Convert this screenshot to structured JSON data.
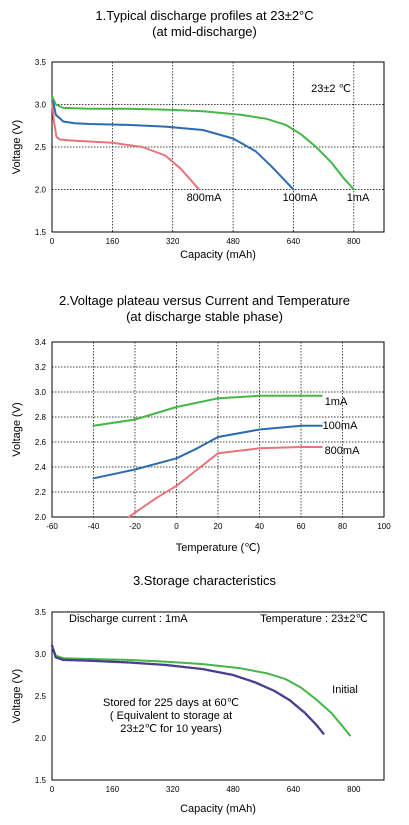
{
  "chart_data": [
    {
      "type": "line",
      "title_line1": "1.Typical discharge profiles at 23±2°C",
      "title_line2": "(at mid-discharge)",
      "xlabel": "Capacity (mAh)",
      "ylabel": "Voltage (V)",
      "xlim": [
        0,
        880
      ],
      "ylim": [
        1.5,
        3.5
      ],
      "xticks": [
        "0",
        "160",
        "320",
        "480",
        "640",
        "800"
      ],
      "yticks": [
        "1.5",
        "2.0",
        "2.5",
        "3.0",
        "3.5"
      ],
      "grid": true,
      "annotation": "23±2 ℃",
      "series": [
        {
          "name": "800mA",
          "color": "#e8737a",
          "x": [
            0,
            5,
            12,
            20,
            40,
            80,
            160,
            240,
            300,
            340,
            370,
            390
          ],
          "y": [
            3.05,
            2.8,
            2.62,
            2.59,
            2.58,
            2.57,
            2.55,
            2.5,
            2.4,
            2.25,
            2.1,
            2.0
          ]
        },
        {
          "name": "100mA",
          "color": "#2e6ab0",
          "x": [
            0,
            10,
            30,
            60,
            100,
            200,
            300,
            400,
            480,
            540,
            580,
            610,
            640
          ],
          "y": [
            3.1,
            2.88,
            2.8,
            2.78,
            2.77,
            2.76,
            2.74,
            2.7,
            2.6,
            2.45,
            2.28,
            2.14,
            2.0
          ]
        },
        {
          "name": "1mA",
          "color": "#45b648",
          "x": [
            0,
            10,
            30,
            100,
            200,
            300,
            400,
            500,
            570,
            620,
            660,
            700,
            740,
            770,
            800
          ],
          "y": [
            3.1,
            3.0,
            2.96,
            2.95,
            2.95,
            2.94,
            2.92,
            2.88,
            2.83,
            2.76,
            2.65,
            2.5,
            2.32,
            2.15,
            2.0
          ]
        }
      ]
    },
    {
      "type": "line",
      "title_line1": "2.Voltage plateau versus Current and Temperature",
      "title_line2": "(at discharge stable phase)",
      "xlabel": "Temperature (℃)",
      "ylabel": "Voltage (V)",
      "xlim": [
        -60,
        100
      ],
      "ylim": [
        2.0,
        3.4
      ],
      "xticks": [
        "-60",
        "-40",
        "-20",
        "0",
        "20",
        "40",
        "60",
        "80",
        "100"
      ],
      "yticks": [
        "2.0",
        "2.2",
        "2.4",
        "2.6",
        "2.8",
        "3.0",
        "3.2",
        "3.4"
      ],
      "grid": true,
      "series": [
        {
          "name": "1mA",
          "color": "#45b648",
          "x": [
            -40,
            -20,
            0,
            20,
            40,
            60,
            70
          ],
          "y": [
            2.73,
            2.78,
            2.88,
            2.95,
            2.97,
            2.97,
            2.97
          ]
        },
        {
          "name": "100mA",
          "color": "#2e6ab0",
          "x": [
            -40,
            -20,
            0,
            10,
            20,
            40,
            60,
            70
          ],
          "y": [
            2.31,
            2.38,
            2.47,
            2.55,
            2.64,
            2.7,
            2.73,
            2.73
          ]
        },
        {
          "name": "800mA",
          "color": "#e8737a",
          "x": [
            -23,
            -10,
            0,
            10,
            20,
            40,
            60,
            70
          ],
          "y": [
            2.0,
            2.15,
            2.25,
            2.38,
            2.51,
            2.55,
            2.56,
            2.56
          ]
        }
      ]
    },
    {
      "type": "line",
      "title_line1": "3.Storage characteristics",
      "xlabel": "Capacity (mAh)",
      "ylabel": "Voltage (V)",
      "xlim": [
        0,
        880
      ],
      "ylim": [
        1.5,
        3.5
      ],
      "xticks": [
        "0",
        "160",
        "320",
        "480",
        "640",
        "800"
      ],
      "yticks": [
        "1.5",
        "2.0",
        "2.5",
        "3.0",
        "3.5"
      ],
      "grid": false,
      "annotation_left": "Discharge current : 1mA",
      "annotation_right": "Temperature : 23±2℃",
      "stored_note": [
        "Stored for 225 days at 60℃",
        "( Equivalent to storage at",
        "23±2℃ for 10 years)"
      ],
      "series": [
        {
          "name": "Initial",
          "color": "#45b648",
          "dotted": false,
          "x": [
            0,
            10,
            30,
            100,
            200,
            300,
            400,
            500,
            570,
            620,
            660,
            700,
            740,
            770,
            790
          ],
          "y": [
            3.1,
            2.98,
            2.95,
            2.94,
            2.93,
            2.91,
            2.88,
            2.83,
            2.77,
            2.7,
            2.6,
            2.46,
            2.3,
            2.14,
            2.03
          ]
        },
        {
          "name": "",
          "color": "#4a3d8f",
          "dotted": true,
          "x": [
            0,
            10,
            30,
            100,
            200,
            300,
            400,
            480,
            540,
            590,
            630,
            670,
            700,
            720
          ],
          "y": [
            3.1,
            2.96,
            2.93,
            2.92,
            2.9,
            2.87,
            2.82,
            2.75,
            2.66,
            2.56,
            2.45,
            2.3,
            2.16,
            2.05
          ]
        }
      ]
    }
  ]
}
